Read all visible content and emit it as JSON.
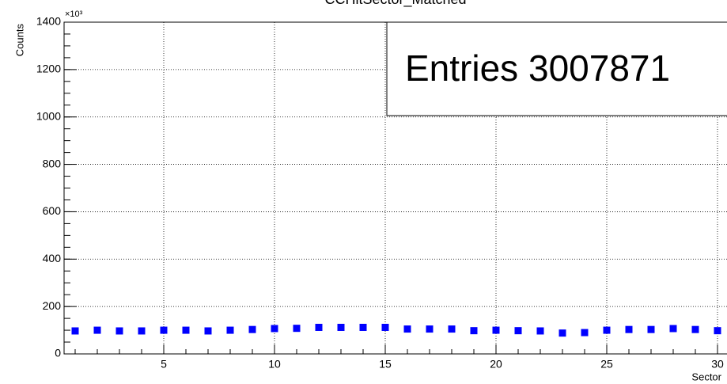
{
  "chart_data": {
    "type": "scatter",
    "title": "CCHitSector_Matched",
    "x_label": "Sector",
    "y_label": "Counts",
    "y_exponent": "×10³",
    "x": [
      1,
      2,
      3,
      4,
      5,
      6,
      7,
      8,
      9,
      10,
      11,
      12,
      13,
      14,
      15,
      16,
      17,
      18,
      19,
      20,
      21,
      22,
      23,
      24,
      25,
      26,
      27,
      28,
      29,
      30
    ],
    "values": [
      97,
      100,
      97,
      97,
      100,
      100,
      97,
      100,
      103,
      107,
      108,
      112,
      112,
      112,
      112,
      105,
      105,
      105,
      98,
      100,
      98,
      97,
      88,
      90,
      100,
      103,
      103,
      107,
      103,
      98
    ],
    "color": "#0000ff",
    "xlim": [
      0.5,
      30.5
    ],
    "xticks": [
      5,
      10,
      15,
      20,
      25,
      30
    ],
    "ylim": [
      0,
      1400
    ],
    "yticks": [
      0,
      200,
      400,
      600,
      800,
      1000,
      1200,
      1400
    ],
    "grid": true,
    "stats": {
      "name": "Entries",
      "value": 3007871
    }
  }
}
